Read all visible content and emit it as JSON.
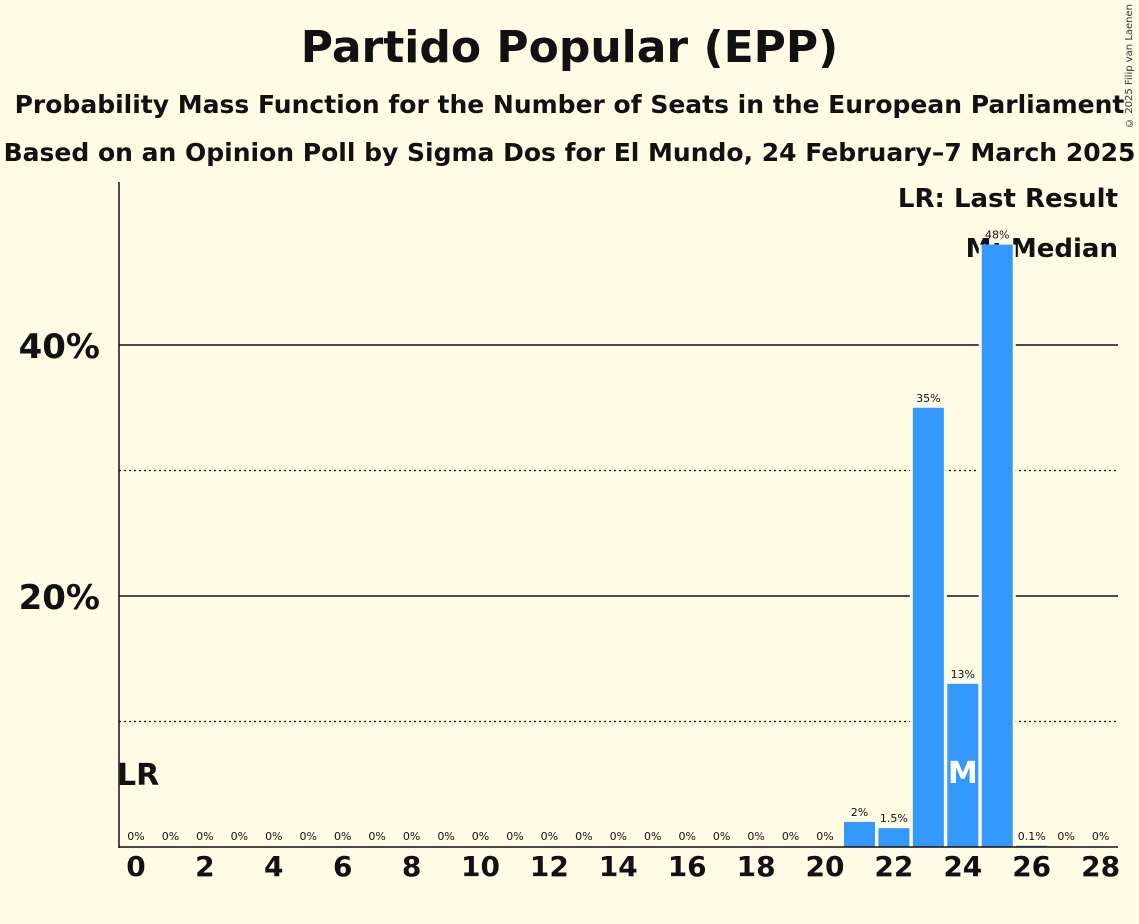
{
  "title": "Partido Popular (EPP)",
  "subtitle": "Probability Mass Function for the Number of Seats in the European Parliament",
  "subtitle2": "Based on an Opinion Poll by Sigma Dos for El Mundo, 24 February–7 March 2025",
  "copyright": "© 2025 Filip van Laenen",
  "legend": {
    "last_result": "LR: Last Result",
    "median": "M: Median"
  },
  "colors": {
    "background": "#fffbe5",
    "bar": "#3399ff"
  },
  "chart_data": {
    "type": "bar",
    "categories": [
      0,
      1,
      2,
      3,
      4,
      5,
      6,
      7,
      8,
      9,
      10,
      11,
      12,
      13,
      14,
      15,
      16,
      17,
      18,
      19,
      20,
      21,
      22,
      23,
      24,
      25,
      26,
      27,
      28
    ],
    "values": [
      0,
      0,
      0,
      0,
      0,
      0,
      0,
      0,
      0,
      0,
      0,
      0,
      0,
      0,
      0,
      0,
      0,
      0,
      0,
      0,
      0,
      2,
      1.5,
      35,
      13,
      48,
      0.1,
      0,
      0
    ],
    "data_labels": [
      "0%",
      "0%",
      "0%",
      "0%",
      "0%",
      "0%",
      "0%",
      "0%",
      "0%",
      "0%",
      "0%",
      "0%",
      "0%",
      "0%",
      "0%",
      "0%",
      "0%",
      "0%",
      "0%",
      "0%",
      "0%",
      "2%",
      "1.5%",
      "35%",
      "13%",
      "48%",
      "0.1%",
      "0%",
      "0%"
    ],
    "x_tick_labels": [
      "0",
      "2",
      "4",
      "6",
      "8",
      "10",
      "12",
      "14",
      "16",
      "18",
      "20",
      "22",
      "24",
      "26",
      "28"
    ],
    "y_tick_labels": [
      "20%",
      "40%"
    ],
    "ylim": [
      0,
      53
    ],
    "last_result_seat": 0,
    "last_result_label": "LR",
    "median_seat": 24,
    "median_label": "M",
    "grid": true
  }
}
